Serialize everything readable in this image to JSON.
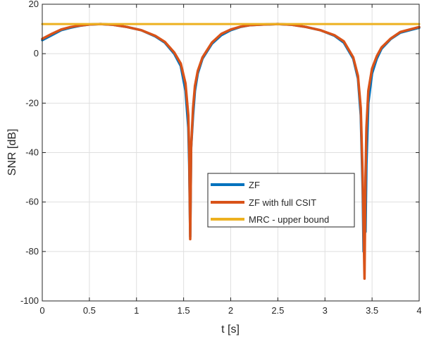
{
  "chart_data": {
    "type": "line",
    "title": "",
    "xlabel": "t [s]",
    "ylabel": "SNR [dB]",
    "xlim": [
      0,
      4
    ],
    "ylim": [
      -100,
      20
    ],
    "xticks": [
      0,
      0.5,
      1,
      1.5,
      2,
      2.5,
      3,
      3.5,
      4
    ],
    "yticks": [
      -100,
      -80,
      -60,
      -40,
      -20,
      0,
      20
    ],
    "xtick_labels": [
      "0",
      "0.5",
      "1",
      "1.5",
      "2",
      "2.5",
      "3",
      "3.5",
      "4"
    ],
    "ytick_labels": [
      "-100",
      "-80",
      "-60",
      "-40",
      "-20",
      "0",
      "20"
    ],
    "grid": true,
    "legend_position": "center",
    "series": [
      {
        "name": "ZF",
        "color": "#0072BD",
        "x": [
          0,
          0.1,
          0.2,
          0.3,
          0.4,
          0.5,
          0.62,
          0.75,
          0.9,
          1.05,
          1.2,
          1.3,
          1.4,
          1.47,
          1.52,
          1.55,
          1.56,
          1.57,
          1.575,
          1.58,
          1.6,
          1.62,
          1.65,
          1.7,
          1.8,
          1.9,
          2.0,
          2.1,
          2.2,
          2.35,
          2.5,
          2.65,
          2.8,
          2.95,
          3.1,
          3.2,
          3.3,
          3.35,
          3.38,
          3.4,
          3.41,
          3.42,
          3.43,
          3.44,
          3.46,
          3.5,
          3.55,
          3.6,
          3.7,
          3.8,
          3.9,
          4.0
        ],
        "y": [
          5.5,
          7.5,
          9.5,
          10.5,
          11.3,
          11.8,
          12,
          11.7,
          10.8,
          9.5,
          7,
          4.5,
          0,
          -5,
          -15,
          -30,
          -45,
          -74,
          -55,
          -38,
          -25,
          -15,
          -8,
          -2,
          4,
          7.5,
          9.5,
          10.8,
          11.5,
          11.8,
          12,
          11.7,
          10.8,
          9.5,
          7.3,
          4.5,
          -2,
          -10,
          -25,
          -55,
          -80,
          -60,
          -72,
          -45,
          -20,
          -8,
          -2,
          2,
          6,
          8.5,
          9.5,
          10.5
        ]
      },
      {
        "name": "ZF with full CSIT",
        "color": "#D95319",
        "x": [
          0,
          0.1,
          0.2,
          0.3,
          0.4,
          0.5,
          0.62,
          0.75,
          0.9,
          1.05,
          1.2,
          1.3,
          1.4,
          1.47,
          1.52,
          1.55,
          1.56,
          1.57,
          1.58,
          1.6,
          1.62,
          1.65,
          1.7,
          1.8,
          1.9,
          2.0,
          2.1,
          2.2,
          2.35,
          2.5,
          2.65,
          2.8,
          2.95,
          3.1,
          3.2,
          3.3,
          3.35,
          3.38,
          3.4,
          3.42,
          3.43,
          3.44,
          3.46,
          3.5,
          3.55,
          3.6,
          3.7,
          3.8,
          3.9,
          4.0
        ],
        "y": [
          6,
          8,
          9.8,
          10.8,
          11.4,
          11.8,
          12,
          11.7,
          10.8,
          9.5,
          7.2,
          4.8,
          0.5,
          -4,
          -12,
          -25,
          -40,
          -75,
          -38,
          -22,
          -13,
          -7,
          -1.5,
          4.5,
          8,
          9.8,
          10.9,
          11.5,
          11.8,
          12,
          11.7,
          10.8,
          9.5,
          7.5,
          5,
          -1.5,
          -9,
          -22,
          -50,
          -91,
          -50,
          -30,
          -15,
          -6,
          -1,
          2.5,
          6.2,
          8.8,
          9.8,
          10.8
        ]
      },
      {
        "name": "MRC - upper bound",
        "color": "#EDB120",
        "x": [
          0,
          4
        ],
        "y": [
          12,
          12
        ]
      }
    ]
  }
}
